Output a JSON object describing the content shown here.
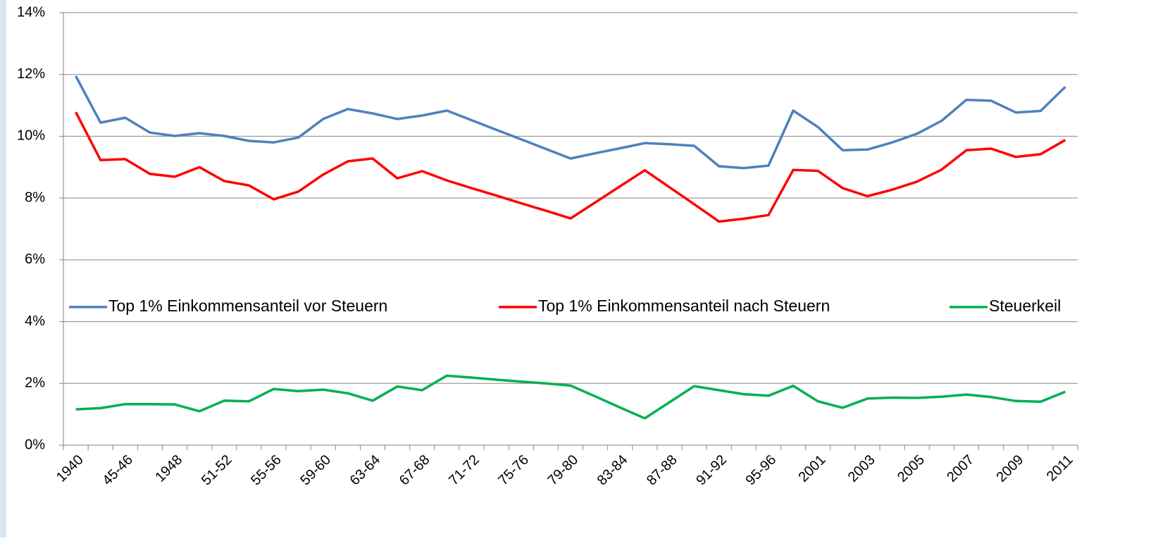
{
  "chart_data": {
    "type": "line",
    "categories": [
      "1940",
      null,
      "45-46",
      null,
      "1948",
      null,
      "51-52",
      null,
      "55-56",
      null,
      "59-60",
      null,
      "63-64",
      null,
      "67-68",
      null,
      "71-72",
      null,
      "75-76",
      null,
      "79-80",
      null,
      "83-84",
      null,
      "87-88",
      null,
      "91-92",
      null,
      "95-96",
      null,
      "2001",
      null,
      "2003",
      null,
      "2005",
      null,
      "2007",
      null,
      "2009",
      null,
      "2011"
    ],
    "series": [
      {
        "name": "Top 1% Einkommensanteil vor Steuern",
        "color": "#4f81bd",
        "values": [
          11.95,
          10.44,
          10.6,
          10.12,
          10.01,
          10.1,
          10.01,
          9.85,
          9.8,
          9.96,
          10.56,
          10.88,
          10.74,
          10.56,
          10.67,
          10.83,
          10.52,
          10.21,
          9.9,
          9.59,
          9.28,
          9.45,
          9.61,
          9.78,
          9.74,
          9.69,
          9.03,
          8.97,
          9.05,
          10.83,
          10.3,
          9.55,
          9.57,
          9.8,
          10.08,
          10.5,
          11.18,
          11.15,
          10.77,
          10.82,
          11.6
        ]
      },
      {
        "name": "Top 1% Einkommensanteil nach Steuern",
        "color": "#ff0000",
        "values": [
          10.78,
          9.23,
          9.26,
          8.78,
          8.69,
          9.0,
          8.55,
          8.41,
          7.96,
          8.21,
          8.76,
          9.19,
          9.28,
          8.64,
          8.87,
          8.57,
          8.32,
          8.08,
          7.83,
          7.59,
          7.34,
          7.86,
          8.38,
          8.9,
          8.35,
          7.8,
          7.24,
          7.33,
          7.45,
          8.91,
          8.88,
          8.32,
          8.06,
          8.27,
          8.53,
          8.92,
          9.55,
          9.6,
          9.33,
          9.42,
          9.88
        ]
      },
      {
        "name": "Steuerkeil",
        "color": "#00b050",
        "values": [
          1.16,
          1.2,
          1.33,
          1.33,
          1.32,
          1.1,
          1.44,
          1.42,
          1.82,
          1.75,
          1.8,
          1.68,
          1.44,
          1.9,
          1.78,
          2.25,
          2.19,
          2.12,
          2.06,
          2.0,
          1.93,
          1.58,
          1.22,
          0.87,
          1.39,
          1.91,
          1.78,
          1.65,
          1.6,
          1.92,
          1.42,
          1.21,
          1.51,
          1.54,
          1.53,
          1.57,
          1.64,
          1.56,
          1.43,
          1.41,
          1.73
        ]
      }
    ],
    "ylim": [
      0,
      14
    ],
    "yticks": [
      {
        "value": 0,
        "label": "0%"
      },
      {
        "value": 2,
        "label": "2%"
      },
      {
        "value": 4,
        "label": "4%"
      },
      {
        "value": 6,
        "label": "6%"
      },
      {
        "value": 8,
        "label": "8%"
      },
      {
        "value": 10,
        "label": "10%"
      },
      {
        "value": 12,
        "label": "12%"
      },
      {
        "value": 14,
        "label": "14%"
      }
    ],
    "grid": true,
    "legend": "center"
  }
}
